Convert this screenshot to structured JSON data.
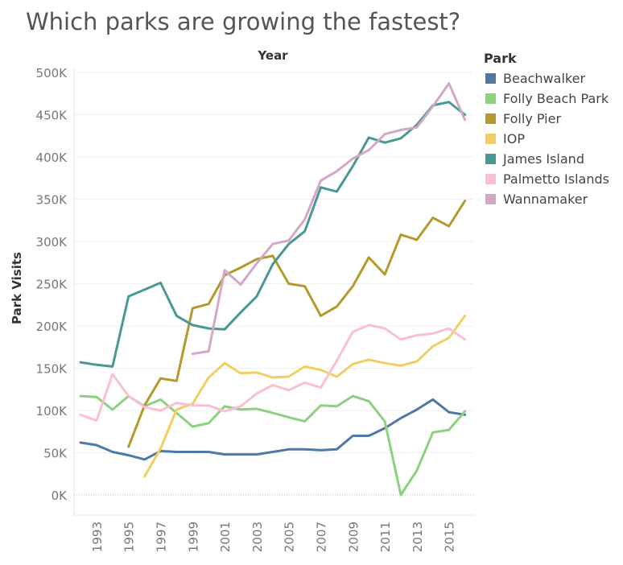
{
  "chart_data": {
    "type": "line",
    "title": "Which parks are growing the fastest?",
    "xlabel": "Year",
    "ylabel": "Park Visits",
    "legend_title": "Park",
    "legend_position": "right",
    "grid": true,
    "xlim": [
      1992,
      2016
    ],
    "ylim": [
      0,
      500000
    ],
    "yticks": [
      0,
      50000,
      100000,
      150000,
      200000,
      250000,
      300000,
      350000,
      400000,
      450000,
      500000
    ],
    "ytick_labels": [
      "0K",
      "50K",
      "100K",
      "150K",
      "200K",
      "250K",
      "300K",
      "350K",
      "400K",
      "450K",
      "500K"
    ],
    "xticks": [
      1993,
      1995,
      1997,
      1999,
      2001,
      2003,
      2005,
      2007,
      2009,
      2011,
      2013,
      2015
    ],
    "xtick_labels": [
      "1993",
      "1995",
      "1997",
      "1999",
      "2001",
      "2003",
      "2005",
      "2007",
      "2009",
      "2011",
      "2013",
      "2015"
    ],
    "x": [
      1992,
      1993,
      1994,
      1995,
      1996,
      1997,
      1998,
      1999,
      2000,
      2001,
      2002,
      2003,
      2004,
      2005,
      2006,
      2007,
      2008,
      2009,
      2010,
      2011,
      2012,
      2013,
      2014,
      2015,
      2016
    ],
    "series": [
      {
        "name": "Beachwalker",
        "color": "#4e79a7",
        "values": [
          62000,
          59000,
          51000,
          47000,
          42000,
          52000,
          51000,
          51000,
          51000,
          48000,
          48000,
          48000,
          51000,
          54000,
          54000,
          53000,
          54000,
          70000,
          70000,
          79000,
          91000,
          101000,
          113000,
          98000,
          95000
        ]
      },
      {
        "name": "Folly Beach Park",
        "color": "#8cd17d",
        "values": [
          117000,
          116000,
          101000,
          117000,
          105000,
          113000,
          97000,
          81000,
          85000,
          105000,
          101000,
          102000,
          97000,
          92000,
          87000,
          106000,
          105000,
          117000,
          111000,
          87000,
          0,
          29000,
          74000,
          77000,
          99000
        ]
      },
      {
        "name": "Folly Pier",
        "color": "#b6992d",
        "values": [
          null,
          null,
          null,
          57000,
          106000,
          138000,
          135000,
          221000,
          226000,
          260000,
          269000,
          279000,
          283000,
          250000,
          247000,
          212000,
          223000,
          247000,
          281000,
          261000,
          308000,
          302000,
          328000,
          318000,
          348000
        ]
      },
      {
        "name": "IOP",
        "color": "#f1ce63",
        "values": [
          null,
          null,
          null,
          null,
          22000,
          55000,
          101000,
          108000,
          139000,
          156000,
          144000,
          145000,
          139000,
          140000,
          152000,
          148000,
          140000,
          155000,
          160000,
          156000,
          153000,
          158000,
          176000,
          186000,
          212000
        ]
      },
      {
        "name": "James Island",
        "color": "#499894",
        "values": [
          157000,
          154000,
          152000,
          235000,
          243000,
          251000,
          212000,
          201000,
          197000,
          196000,
          216000,
          235000,
          273000,
          297000,
          312000,
          364000,
          359000,
          389000,
          423000,
          417000,
          422000,
          438000,
          461000,
          465000,
          450000
        ]
      },
      {
        "name": "Palmetto Islands",
        "color": "#fabfd2",
        "values": [
          95000,
          88000,
          143000,
          117000,
          104000,
          100000,
          109000,
          106000,
          106000,
          99000,
          105000,
          120000,
          130000,
          124000,
          133000,
          127000,
          159000,
          193000,
          201000,
          197000,
          184000,
          189000,
          191000,
          197000,
          184000
        ]
      },
      {
        "name": "Wannamaker",
        "color": "#d4a6c8",
        "values": [
          null,
          null,
          null,
          null,
          null,
          null,
          null,
          167000,
          170000,
          266000,
          249000,
          274000,
          297000,
          301000,
          326000,
          372000,
          383000,
          398000,
          408000,
          427000,
          432000,
          435000,
          460000,
          487000,
          444000
        ]
      }
    ]
  }
}
